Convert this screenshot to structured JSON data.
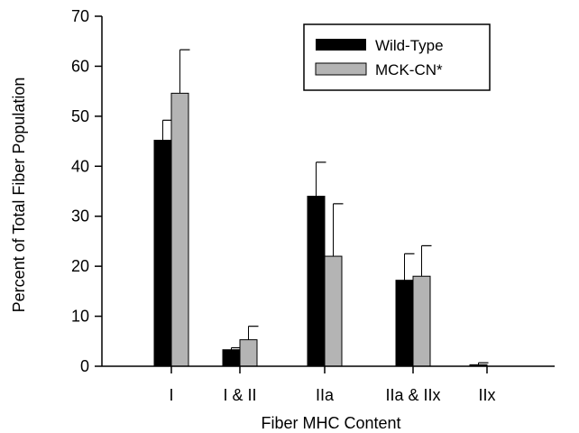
{
  "chart_data": {
    "type": "bar",
    "title": "",
    "xlabel": "Fiber MHC Content",
    "ylabel": "Percent of Total Fiber Population",
    "ylim": [
      0,
      70
    ],
    "yticks": [
      0,
      10,
      20,
      30,
      40,
      50,
      60,
      70
    ],
    "categories": [
      "I",
      "I & II",
      "IIa",
      "IIa & IIx",
      "IIx"
    ],
    "series": [
      {
        "name": "Wild-Type",
        "color": "#000000",
        "values": [
          45.2,
          3.3,
          34.0,
          17.2,
          0.3
        ],
        "error": [
          4.0,
          0.4,
          6.8,
          5.3,
          0.4
        ]
      },
      {
        "name": "MCK-CN*",
        "color": "#b4b4b4",
        "values": [
          54.6,
          5.3,
          22.0,
          18.0,
          0.0
        ],
        "error": [
          8.7,
          2.7,
          10.5,
          6.1,
          0.0
        ]
      }
    ],
    "legend": {
      "position": "top-right"
    },
    "grid": false
  }
}
